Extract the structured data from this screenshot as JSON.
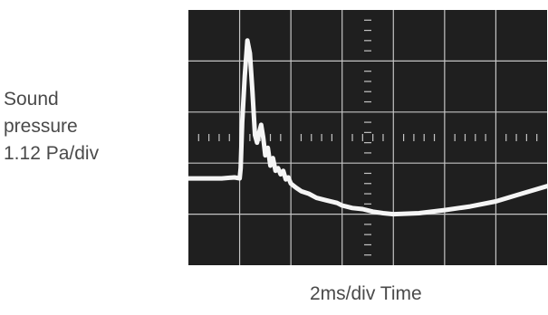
{
  "chart_data": {
    "type": "line",
    "title": "",
    "ylabel_lines": [
      "Sound",
      "pressure",
      "1.12 Pa/div"
    ],
    "xlabel": "2ms/div Time",
    "grid": true,
    "divisions": {
      "x": 7,
      "y": 5
    },
    "units": {
      "x": "div",
      "y": "div"
    },
    "xlim": [
      0,
      7
    ],
    "ylim": [
      -2.5,
      2.5
    ],
    "colors": {
      "screen": "#1f1f1f",
      "graticule": "#c4c4c4",
      "trace": "#f5f5f5"
    },
    "series": [
      {
        "x": [
          0,
          0.35,
          0.65,
          0.9,
          1.0,
          1.02,
          1.05,
          1.1,
          1.15,
          1.2,
          1.25,
          1.3,
          1.34,
          1.38,
          1.42,
          1.46,
          1.5,
          1.55,
          1.6,
          1.65,
          1.7,
          1.75,
          1.8,
          1.85,
          1.9,
          1.95,
          2.0,
          2.1,
          2.2,
          2.35,
          2.5,
          2.7,
          2.9,
          3.0,
          3.2,
          3.4,
          3.6,
          3.8,
          4.0,
          4.5,
          5.0,
          5.5,
          6.0,
          6.5,
          7.0
        ],
        "y": [
          -0.8,
          -0.8,
          -0.8,
          -0.78,
          -0.8,
          -0.6,
          0.3,
          1.2,
          1.9,
          1.65,
          0.9,
          0.05,
          -0.1,
          0.1,
          0.25,
          0.0,
          -0.35,
          -0.2,
          -0.55,
          -0.4,
          -0.65,
          -0.6,
          -0.72,
          -0.65,
          -0.82,
          -0.78,
          -0.9,
          -0.98,
          -1.05,
          -1.1,
          -1.18,
          -1.23,
          -1.28,
          -1.33,
          -1.38,
          -1.4,
          -1.45,
          -1.48,
          -1.5,
          -1.48,
          -1.42,
          -1.35,
          -1.25,
          -1.1,
          -0.95
        ]
      }
    ]
  }
}
